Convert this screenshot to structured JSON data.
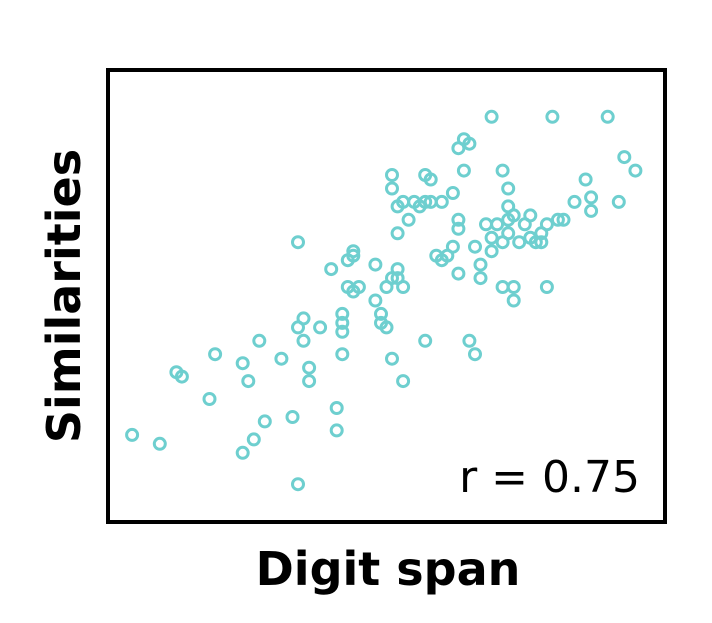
{
  "chart_data": {
    "type": "scatter",
    "title": "",
    "xlabel": "Digit span",
    "ylabel": "Similarities",
    "annotation": "r = 0.75",
    "grid": false,
    "ticks": false,
    "point_color": "#6ecfcf",
    "xlim": [
      0,
      100
    ],
    "ylim": [
      0,
      100
    ],
    "points": [
      [
        4,
        19
      ],
      [
        9,
        17
      ],
      [
        12,
        33
      ],
      [
        13,
        32
      ],
      [
        18,
        27
      ],
      [
        19,
        37
      ],
      [
        24,
        35
      ],
      [
        24,
        15
      ],
      [
        25,
        31
      ],
      [
        26,
        18
      ],
      [
        27,
        40
      ],
      [
        28,
        22
      ],
      [
        31,
        36
      ],
      [
        33,
        23
      ],
      [
        34,
        8
      ],
      [
        34,
        43
      ],
      [
        34,
        62
      ],
      [
        35,
        40
      ],
      [
        35,
        45
      ],
      [
        36,
        34
      ],
      [
        36,
        31
      ],
      [
        38,
        43
      ],
      [
        40,
        56
      ],
      [
        42,
        37
      ],
      [
        42,
        44
      ],
      [
        42,
        42
      ],
      [
        41,
        25
      ],
      [
        41,
        20
      ],
      [
        42,
        46
      ],
      [
        43,
        52
      ],
      [
        43,
        58
      ],
      [
        44,
        59
      ],
      [
        44,
        60
      ],
      [
        44,
        51
      ],
      [
        45,
        52
      ],
      [
        48,
        57
      ],
      [
        48,
        49
      ],
      [
        49,
        46
      ],
      [
        49,
        44
      ],
      [
        50,
        52
      ],
      [
        50,
        43
      ],
      [
        51,
        54
      ],
      [
        51,
        74
      ],
      [
        51,
        77
      ],
      [
        52,
        70
      ],
      [
        53,
        71
      ],
      [
        52,
        54
      ],
      [
        53,
        52
      ],
      [
        52,
        56
      ],
      [
        52,
        64
      ],
      [
        51,
        36
      ],
      [
        53,
        31
      ],
      [
        54,
        67
      ],
      [
        55,
        71
      ],
      [
        56,
        70
      ],
      [
        58,
        76
      ],
      [
        57,
        77
      ],
      [
        57,
        71
      ],
      [
        57,
        40
      ],
      [
        58,
        71
      ],
      [
        59,
        59
      ],
      [
        60,
        71
      ],
      [
        60,
        58
      ],
      [
        61,
        59
      ],
      [
        62,
        73
      ],
      [
        62,
        61
      ],
      [
        63,
        67
      ],
      [
        63,
        65
      ],
      [
        63,
        55
      ],
      [
        63,
        83
      ],
      [
        64,
        85
      ],
      [
        64,
        78
      ],
      [
        65,
        84
      ],
      [
        66,
        37
      ],
      [
        65,
        40
      ],
      [
        66,
        61
      ],
      [
        67,
        54
      ],
      [
        67,
        57
      ],
      [
        68,
        66
      ],
      [
        69,
        90
      ],
      [
        69,
        63
      ],
      [
        69,
        60
      ],
      [
        70,
        66
      ],
      [
        71,
        62
      ],
      [
        72,
        64
      ],
      [
        71,
        52
      ],
      [
        72,
        67
      ],
      [
        72,
        74
      ],
      [
        71,
        78
      ],
      [
        72,
        70
      ],
      [
        73,
        68
      ],
      [
        73,
        49
      ],
      [
        73,
        52
      ],
      [
        74,
        62
      ],
      [
        75,
        66
      ],
      [
        76,
        68
      ],
      [
        77,
        62
      ],
      [
        76,
        63
      ],
      [
        78,
        62
      ],
      [
        78,
        64
      ],
      [
        79,
        66
      ],
      [
        79,
        52
      ],
      [
        80,
        90
      ],
      [
        81,
        67
      ],
      [
        82,
        67
      ],
      [
        84,
        71
      ],
      [
        87,
        69
      ],
      [
        87,
        72
      ],
      [
        92,
        71
      ],
      [
        93,
        81
      ],
      [
        86,
        76
      ],
      [
        90,
        90
      ],
      [
        95,
        78
      ]
    ]
  }
}
